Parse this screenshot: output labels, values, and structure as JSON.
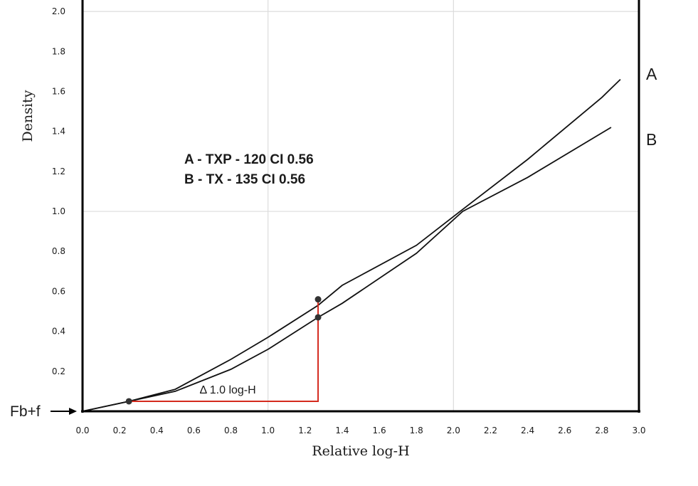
{
  "chart_data": {
    "type": "line",
    "title": "",
    "xlabel": "Relative log-H",
    "ylabel": "Density",
    "xlim": [
      0.0,
      3.0
    ],
    "ylim": [
      0.0,
      2.1
    ],
    "xticks": [
      "0.0",
      "0.2",
      "0.4",
      "0.6",
      "0.8",
      "1.0",
      "1.2",
      "1.4",
      "1.6",
      "1.8",
      "2.0",
      "2.2",
      "2.4",
      "2.6",
      "2.8",
      "3.0"
    ],
    "yticks": [
      "0.2",
      "0.4",
      "0.6",
      "0.8",
      "1.0",
      "1.2",
      "1.4",
      "1.6",
      "1.8",
      "2.0"
    ],
    "grid": {
      "x": [
        1.0,
        2.0
      ],
      "y": [
        1.0,
        2.0
      ]
    },
    "series": [
      {
        "name": "A",
        "color": "#111111",
        "points": [
          [
            0.0,
            0.0
          ],
          [
            0.25,
            0.05
          ],
          [
            0.5,
            0.11
          ],
          [
            0.8,
            0.26
          ],
          [
            1.0,
            0.37
          ],
          [
            1.27,
            0.53
          ],
          [
            1.4,
            0.63
          ],
          [
            1.8,
            0.83
          ],
          [
            2.05,
            1.01
          ],
          [
            2.4,
            1.26
          ],
          [
            2.8,
            1.57
          ],
          [
            2.9,
            1.66
          ]
        ]
      },
      {
        "name": "B",
        "color": "#111111",
        "points": [
          [
            0.0,
            0.0
          ],
          [
            0.25,
            0.05
          ],
          [
            0.5,
            0.1
          ],
          [
            0.8,
            0.21
          ],
          [
            1.0,
            0.31
          ],
          [
            1.27,
            0.47
          ],
          [
            1.4,
            0.54
          ],
          [
            1.8,
            0.79
          ],
          [
            2.05,
            1.0
          ],
          [
            2.4,
            1.17
          ],
          [
            2.85,
            1.42
          ]
        ]
      }
    ],
    "legend": [
      "A - TXP - 120 CI 0.56",
      "B - TX - 135   CI 0.56"
    ],
    "baseline_label": "Fb+f",
    "annotation": {
      "text": "Δ 1.0 log-H",
      "color": "#d42a1e",
      "start": [
        0.25,
        0.05
      ],
      "end": [
        1.27,
        0.05
      ],
      "top_a": [
        1.27,
        0.56
      ],
      "top_b": [
        1.27,
        0.47
      ]
    }
  }
}
